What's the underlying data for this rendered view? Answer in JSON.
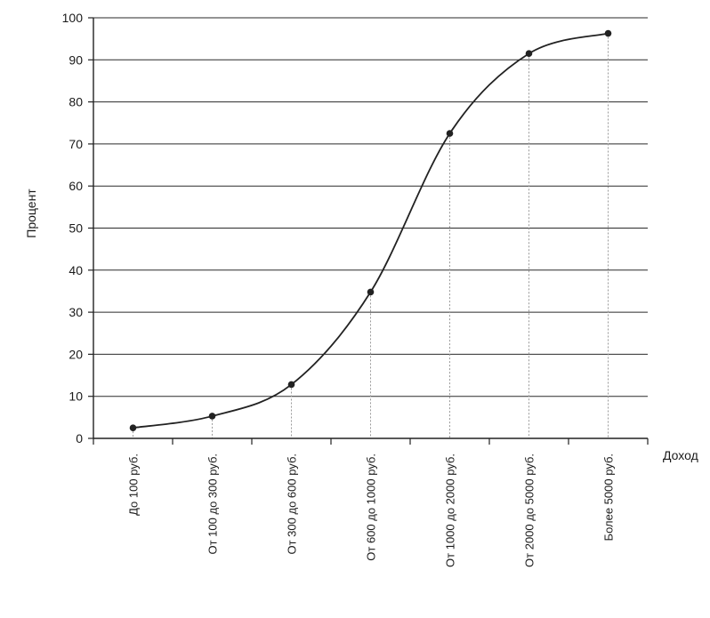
{
  "chart_data": {
    "type": "line",
    "title": "",
    "xlabel": "Доход",
    "ylabel": "Процент",
    "ylim": [
      0,
      100
    ],
    "yticks": [
      0,
      10,
      20,
      30,
      40,
      50,
      60,
      70,
      80,
      90,
      100
    ],
    "grid": "horizontal",
    "categories": [
      "До 100 руб.",
      "От 100 до 300 руб.",
      "От 300 до 600 руб.",
      "От 600 до 1000 руб.",
      "От 1000 до 2000 руб.",
      "От 2000 до 5000 руб.",
      "Более 5000 руб."
    ],
    "values": [
      2.5,
      5.3,
      12.8,
      34.8,
      72.5,
      91.5,
      96.3
    ],
    "colors": {
      "line": "#222222",
      "grid": "#2a2a2a",
      "drop_line": "#9a9a9a"
    }
  }
}
